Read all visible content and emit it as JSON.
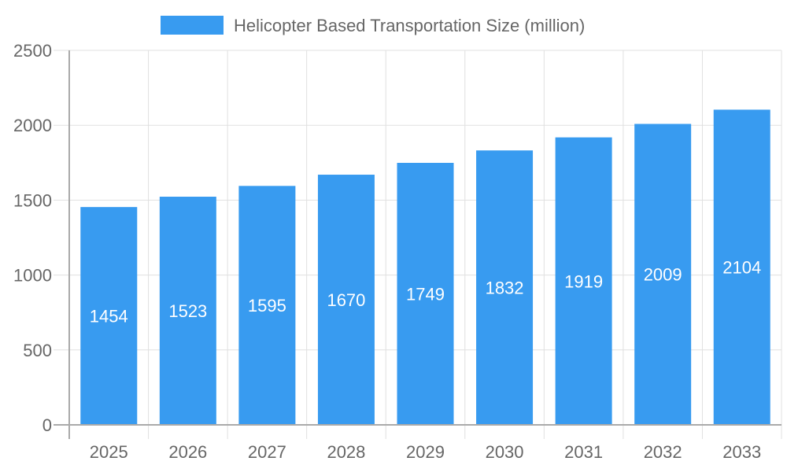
{
  "chart_data": {
    "type": "bar",
    "title": "",
    "xlabel": "",
    "ylabel": "",
    "categories": [
      "2025",
      "2026",
      "2027",
      "2028",
      "2029",
      "2030",
      "2031",
      "2032",
      "2033"
    ],
    "series": [
      {
        "name": "Helicopter Based Transportation Size (million)",
        "values": [
          1454,
          1523,
          1595,
          1670,
          1749,
          1832,
          1919,
          2009,
          2104
        ],
        "color": "#389bf0"
      }
    ],
    "ylim": [
      0,
      2500
    ],
    "yticks": [
      0,
      500,
      1000,
      1500,
      2000,
      2500
    ],
    "grid": true,
    "legend_position": "top",
    "data_labels": true
  }
}
